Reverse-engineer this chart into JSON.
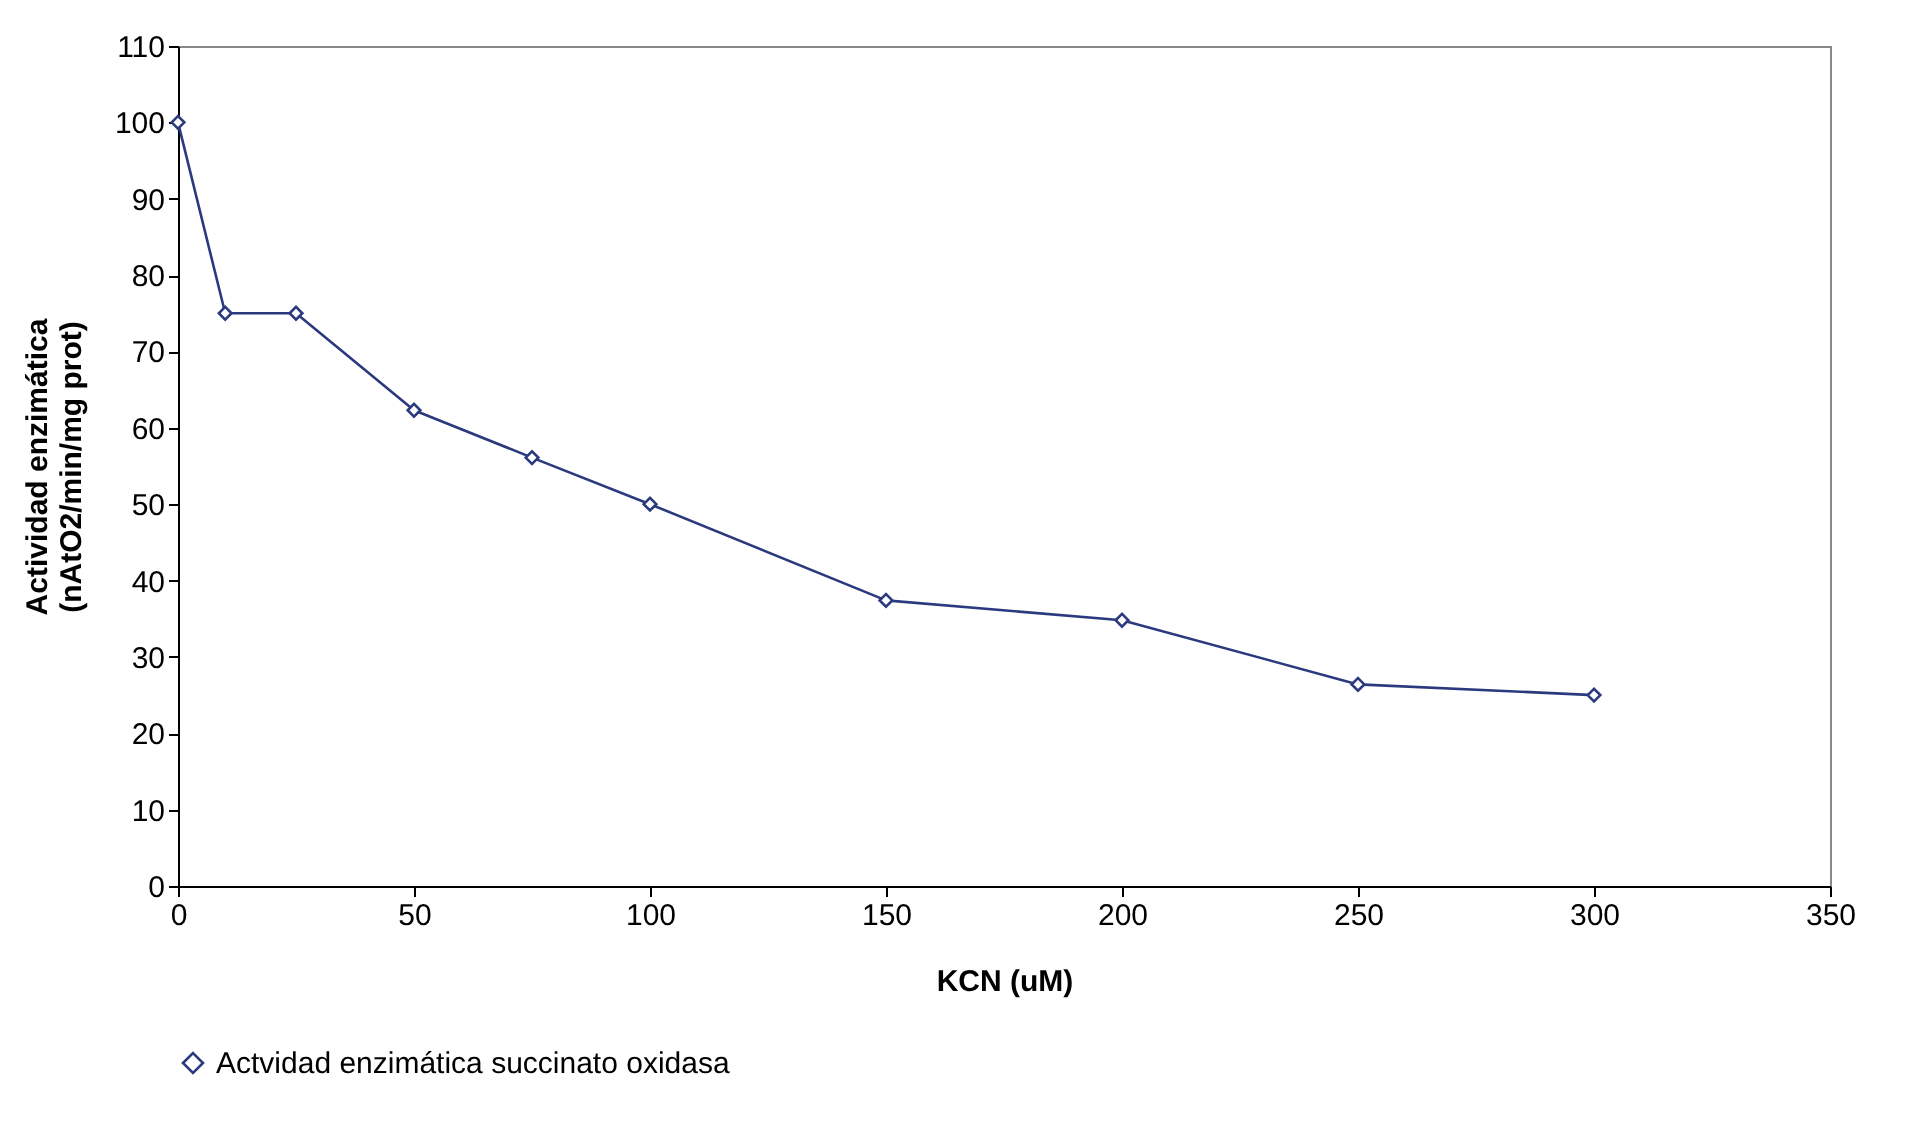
{
  "chart_data": {
    "type": "line",
    "xlabel": "KCN (uM)",
    "ylabel": "Actividad enzimática\n(nAtO2/min/mg prot)",
    "x": [
      0,
      10,
      25,
      50,
      75,
      100,
      150,
      200,
      250,
      300
    ],
    "series": [
      {
        "name": "Actvidad enzimática succinato oxidasa",
        "color": "#2b3a7e",
        "values": [
          100,
          75,
          75,
          62.3,
          56.1,
          50,
          37.4,
          34.8,
          26.4,
          25
        ]
      }
    ],
    "xlim": [
      0,
      350
    ],
    "xticks": [
      0,
      50,
      100,
      150,
      200,
      250,
      300,
      350
    ],
    "ylim": [
      0,
      110
    ],
    "yticks": [
      0,
      10,
      20,
      30,
      40,
      50,
      60,
      70,
      80,
      90,
      100,
      110
    ],
    "grid": false,
    "legend": "bottom",
    "marker": "diamond",
    "line_style": "solid"
  }
}
